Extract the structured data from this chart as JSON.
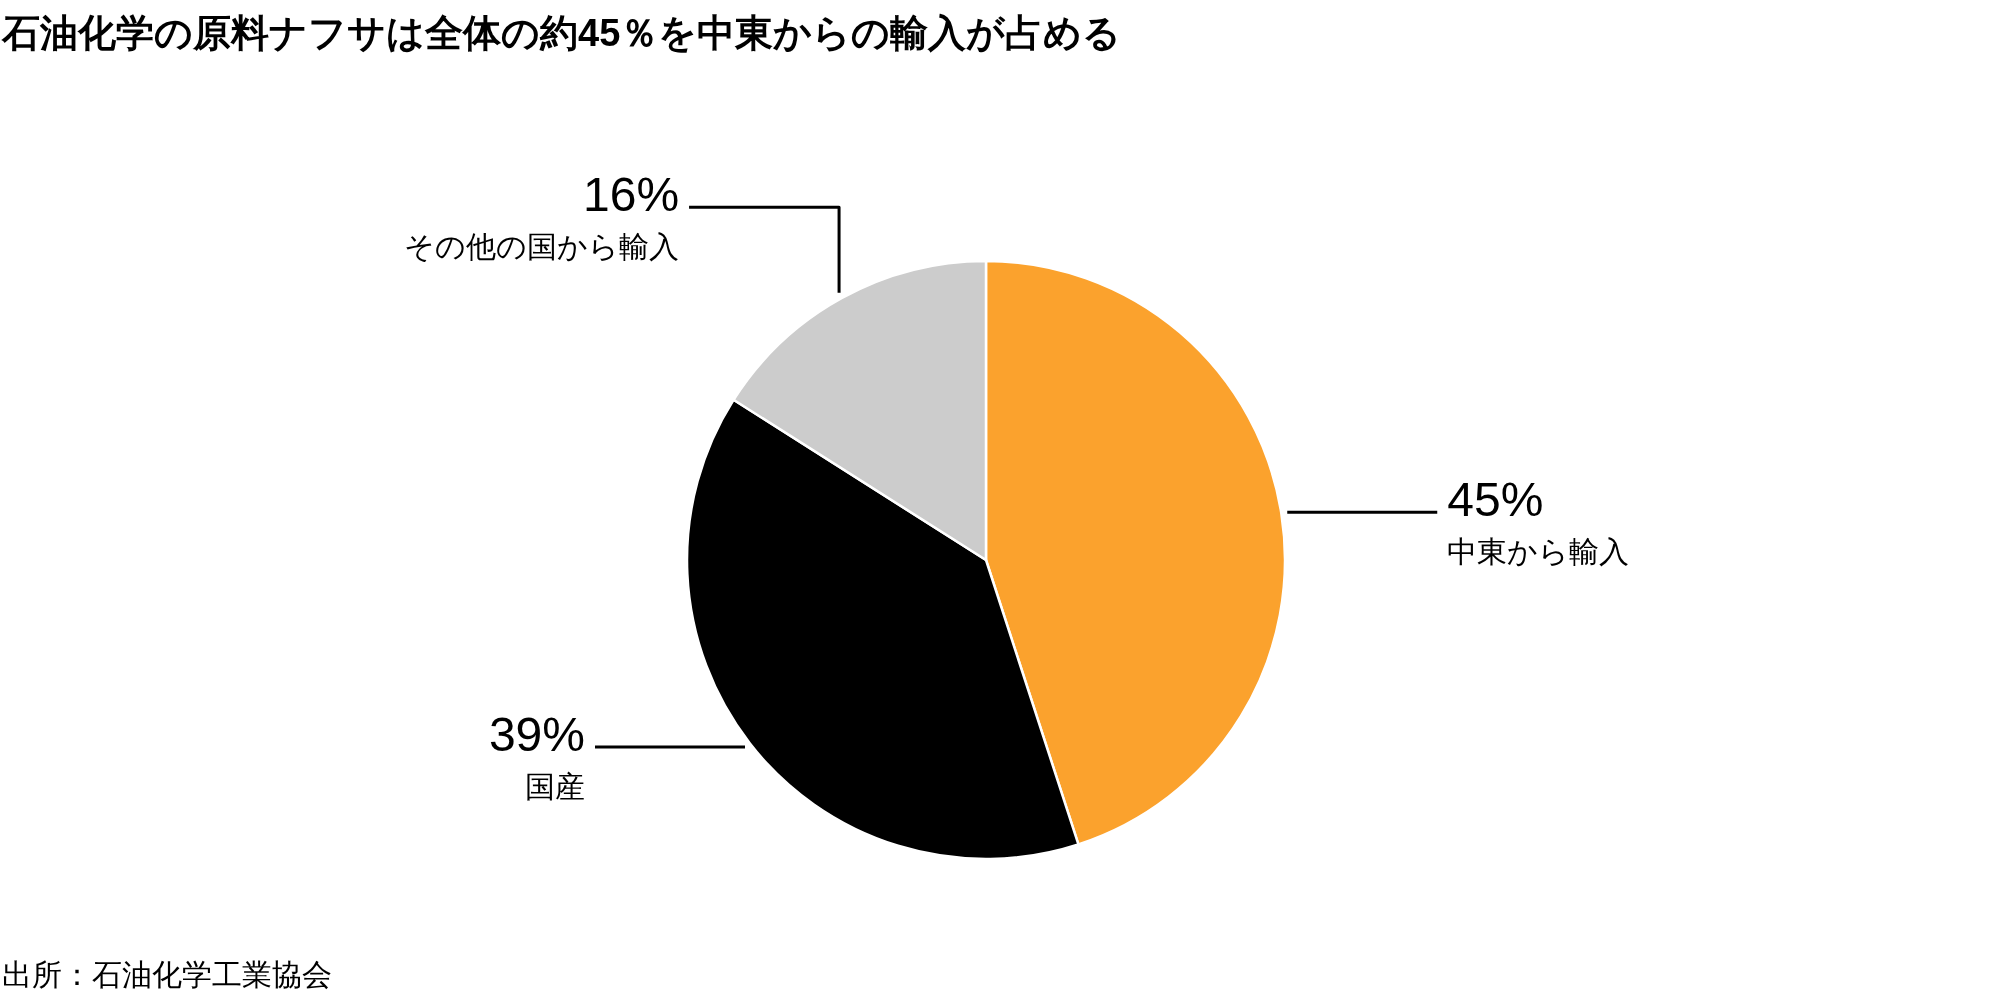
{
  "chart_data": {
    "type": "pie",
    "title": "石油化学の原料ナフサは全体の約45％を中東からの輸入が占める",
    "categories": [
      "中東から輸入",
      "国産",
      "その他の国から輸入"
    ],
    "values": [
      45,
      39,
      16
    ],
    "value_labels": [
      "45%",
      "39%",
      "16%"
    ],
    "colors": [
      "#fba22d",
      "#000000",
      "#cccccc"
    ],
    "annotations": [
      "出所：石油化学工業協会"
    ]
  }
}
